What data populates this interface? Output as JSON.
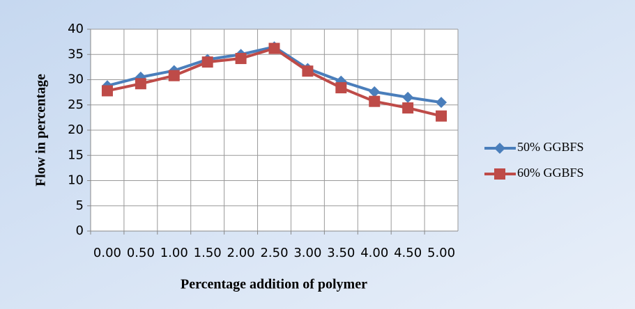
{
  "chart_data": {
    "type": "line",
    "x_label": "Percentage addition of polymer",
    "y_label": "Flow in percentage",
    "categories": [
      "0.00",
      "0.50",
      "1.00",
      "1.50",
      "2.00",
      "2.50",
      "3.00",
      "3.50",
      "4.00",
      "4.50",
      "5.00"
    ],
    "series": [
      {
        "name": "50% GGBFS",
        "color": "#4a7ebb",
        "marker": "diamond",
        "values": [
          28.8,
          30.5,
          31.8,
          34,
          35,
          36.5,
          32.2,
          29.7,
          27.6,
          26.5,
          25.5
        ]
      },
      {
        "name": "60% GGBFS",
        "color": "#be4b48",
        "marker": "square",
        "values": [
          27.8,
          29.2,
          30.8,
          33.5,
          34.2,
          36.2,
          31.7,
          28.4,
          25.7,
          24.4,
          22.8
        ]
      }
    ],
    "ylim": [
      0,
      40
    ],
    "yticks": [
      0,
      5,
      10,
      15,
      20,
      25,
      30,
      35,
      40
    ],
    "grid": true,
    "legend": "right"
  }
}
